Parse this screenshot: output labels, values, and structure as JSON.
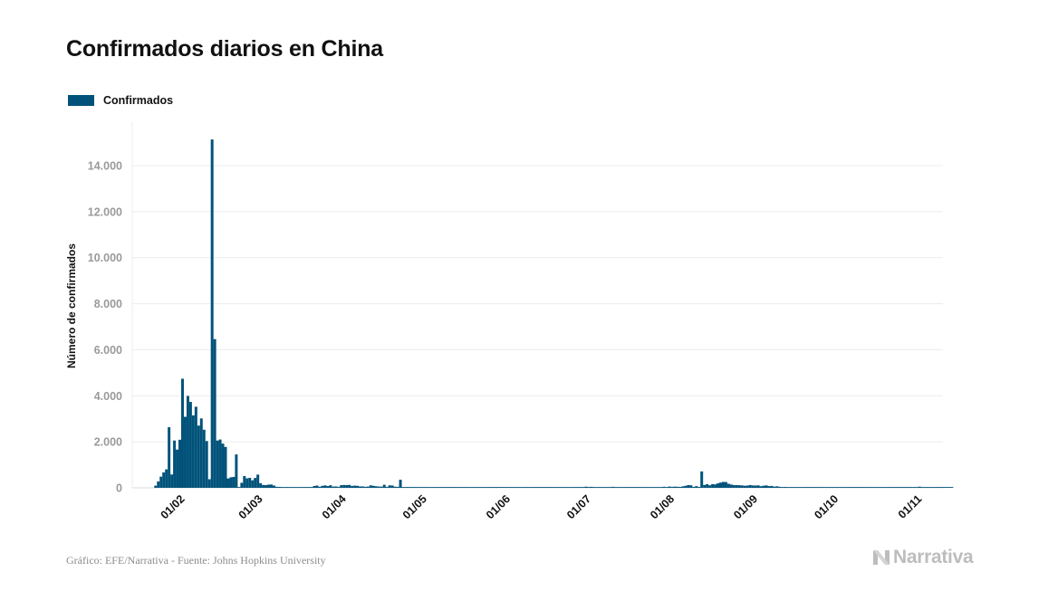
{
  "title": "Confirmados diarios en China",
  "source": "Gráfico: EFE/Narrativa - Fuente: Johns Hopkins University",
  "logo_text": "Narrativa",
  "logo_icon": "narrativa-logo-icon",
  "colors": {
    "bar": "#00527a",
    "grid": "#ececec",
    "tick": "#9a9a9a",
    "text": "#111111",
    "logo": "#bdbdbd"
  },
  "chart_data": {
    "type": "bar",
    "title": "Confirmados diarios en China",
    "xlabel": "",
    "ylabel": "Número de confirmados",
    "ylim": [
      0,
      15500
    ],
    "yticks": [
      0,
      2000,
      4000,
      6000,
      8000,
      10000,
      12000,
      14000
    ],
    "ytick_labels": [
      "0",
      "2.000",
      "4.000",
      "6.000",
      "8.000",
      "10.000",
      "12.000",
      "14.000"
    ],
    "xticks": [
      "01/02",
      "01/03",
      "01/04",
      "01/05",
      "01/06",
      "01/07",
      "01/08",
      "01/09",
      "01/10",
      "01/11"
    ],
    "grid": true,
    "legend_position": "top-left",
    "series": [
      {
        "name": "Confirmados",
        "x_start": "2020-01-22",
        "x_end": "2020-10-24",
        "values": [
          95,
          277,
          486,
          669,
          802,
          2632,
          578,
          2054,
          1661,
          2089,
          4739,
          3086,
          3991,
          3733,
          3147,
          3523,
          2704,
          3015,
          2525,
          2032,
          373,
          15136,
          6463,
          2055,
          2100,
          1921,
          1777,
          408,
          458,
          473,
          1451,
          21,
          219,
          513,
          412,
          434,
          327,
          427,
          574,
          202,
          125,
          119,
          139,
          143,
          99,
          44,
          40,
          19,
          24,
          15,
          20,
          11,
          19,
          6,
          15,
          14,
          36,
          30,
          36,
          79,
          98,
          47,
          86,
          105,
          78,
          112,
          54,
          61,
          43,
          115,
          123,
          120,
          127,
          84,
          94,
          86,
          59,
          59,
          45,
          56,
          107,
          86,
          68,
          55,
          52,
          133,
          43,
          108,
          100,
          49,
          43,
          351,
          27,
          15,
          12,
          11,
          30,
          22,
          5,
          3,
          10,
          4,
          3,
          5,
          4,
          4,
          2,
          3,
          2,
          7,
          3,
          2,
          5,
          4,
          4,
          5,
          3,
          15,
          5,
          10,
          4,
          3,
          1,
          2,
          12,
          6,
          10,
          4,
          6,
          5,
          5,
          11,
          3,
          2,
          4,
          12,
          4,
          4,
          3,
          8,
          10,
          4,
          2,
          2,
          1,
          2,
          2,
          3,
          5,
          3,
          6,
          4,
          3,
          4,
          3,
          5,
          2,
          3,
          4,
          8,
          49,
          35,
          43,
          25,
          35,
          11,
          27,
          31,
          35,
          35,
          44,
          26,
          13,
          22,
          21,
          13,
          6,
          3,
          12,
          10,
          5,
          12,
          15,
          8,
          15,
          12,
          22,
          20,
          22,
          46,
          31,
          55,
          42,
          52,
          46,
          41,
          64,
          89,
          120,
          110,
          42,
          73,
          39,
          712,
          124,
          161,
          110,
          161,
          148,
          193,
          226,
          256,
          252,
          175,
          143,
          118,
          117,
          114,
          106,
          91,
          100,
          121,
          103,
          99,
          106,
          70,
          90,
          104,
          74,
          82,
          54,
          66,
          45,
          36,
          39,
          33,
          26,
          23,
          25,
          15,
          22,
          23,
          16,
          15,
          21,
          14,
          18,
          19,
          11,
          13,
          10,
          15,
          13,
          11,
          14,
          12,
          16,
          13,
          11,
          10,
          12,
          14,
          12,
          15,
          13,
          14,
          16,
          12,
          11,
          14,
          22,
          13,
          15,
          17,
          12,
          16,
          14,
          18,
          15,
          20,
          19,
          26,
          24,
          21,
          49,
          32,
          20,
          16,
          24,
          18,
          28,
          25,
          20,
          16,
          14,
          15,
          22
        ]
      }
    ]
  }
}
